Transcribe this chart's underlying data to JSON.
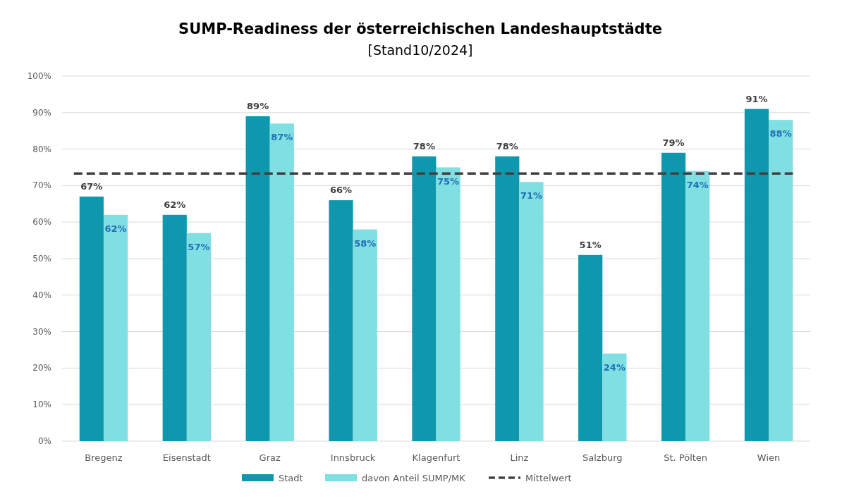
{
  "chart_data": {
    "type": "bar",
    "title": "SUMP-Readiness der österreichischen Landeshauptstädte",
    "subtitle": "[Stand10/2024]",
    "categories": [
      "Bregenz",
      "Eisenstadt",
      "Graz",
      "Innsbruck",
      "Klagenfurt",
      "Linz",
      "Salzburg",
      "St. Pölten",
      "Wien"
    ],
    "series": [
      {
        "name": "Stadt",
        "color": "#0e97ad",
        "values": [
          67,
          62,
          89,
          66,
          78,
          78,
          51,
          79,
          91
        ],
        "value_labels": [
          "67%",
          "62%",
          "89%",
          "66%",
          "78%",
          "78%",
          "51%",
          "79%",
          "91%"
        ]
      },
      {
        "name": "davon Anteil SUMP/MK",
        "color": "#80dfe2",
        "values": [
          62,
          57,
          87,
          58,
          75,
          71,
          24,
          74,
          88
        ],
        "value_labels": [
          "62%",
          "57%",
          "87%",
          "58%",
          "75%",
          "71%",
          "24%",
          "74%",
          "88%"
        ]
      }
    ],
    "ylim": [
      0,
      100
    ],
    "yticks": [
      {
        "value": 0,
        "label": "0%"
      },
      {
        "value": 10,
        "label": "10%"
      },
      {
        "value": 20,
        "label": "20%"
      },
      {
        "value": 30,
        "label": "30%"
      },
      {
        "value": 40,
        "label": "40%"
      },
      {
        "value": 50,
        "label": "50%"
      },
      {
        "value": 60,
        "label": "60%"
      },
      {
        "value": 70,
        "label": "70%"
      },
      {
        "value": 80,
        "label": "80%"
      },
      {
        "value": 90,
        "label": "90%"
      },
      {
        "value": 100,
        "label": "100%"
      }
    ],
    "ref_lines": [
      {
        "axis": "y",
        "value": 73.3,
        "label": "Mittelwert",
        "color": "#404040",
        "line_style": "dashed"
      }
    ],
    "grid": "y",
    "legend": "bottom"
  }
}
